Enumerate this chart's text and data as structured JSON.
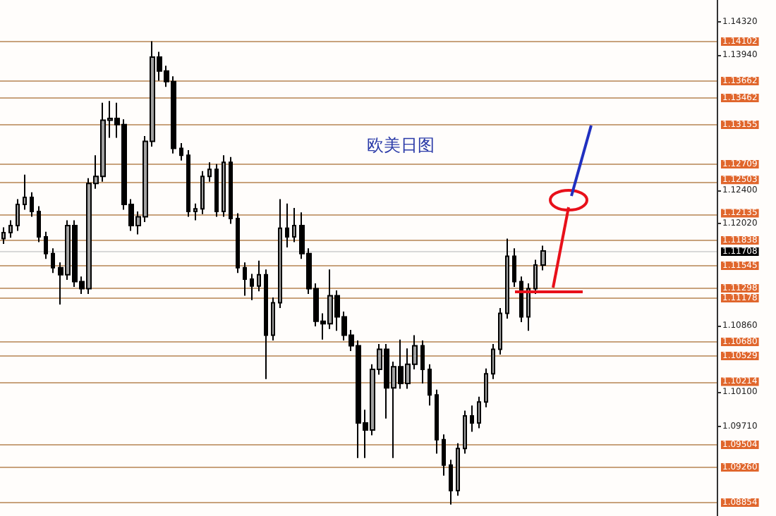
{
  "chart_data": {
    "type": "candlestick",
    "title": "欧美日图",
    "categories": [
      null,
      null,
      null,
      null,
      null,
      null,
      null,
      null,
      null,
      null,
      null,
      null,
      null,
      null,
      null,
      null,
      null,
      null,
      null,
      null,
      null,
      null,
      null,
      null,
      null,
      null,
      null,
      null,
      null,
      null,
      null,
      null,
      null,
      null,
      null,
      null,
      null,
      null,
      null,
      null,
      null,
      null,
      null,
      null,
      null,
      null,
      null,
      null,
      null,
      null,
      null,
      null,
      null,
      null,
      null,
      null,
      null,
      null,
      null,
      null,
      null,
      null,
      null,
      null,
      null,
      null,
      null,
      null,
      null,
      null,
      null,
      null,
      null,
      null,
      null,
      null,
      null,
      null,
      null,
      null,
      null,
      null,
      null,
      null,
      null,
      null,
      null,
      null,
      null,
      null,
      null,
      null,
      null,
      null,
      null,
      null,
      null,
      null,
      null,
      null,
      null
    ],
    "ohlc": [
      [
        1.1185,
        1.1198,
        1.1179,
        1.1192
      ],
      [
        1.1192,
        1.1206,
        1.1186,
        1.12
      ],
      [
        1.12,
        1.123,
        1.1194,
        1.1224
      ],
      [
        1.1224,
        1.1258,
        1.1218,
        1.1232
      ],
      [
        1.1232,
        1.1238,
        1.121,
        1.1216
      ],
      [
        1.1216,
        1.1222,
        1.1181,
        1.1187
      ],
      [
        1.1187,
        1.1193,
        1.1162,
        1.1168
      ],
      [
        1.1168,
        1.1174,
        1.1146,
        1.1152
      ],
      [
        1.1152,
        1.1158,
        1.111,
        1.1144
      ],
      [
        1.1144,
        1.1206,
        1.1138,
        1.12
      ],
      [
        1.12,
        1.1206,
        1.113,
        1.1136
      ],
      [
        1.1136,
        1.1142,
        1.1122,
        1.1128
      ],
      [
        1.1128,
        1.1254,
        1.1122,
        1.1248
      ],
      [
        1.1248,
        1.128,
        1.1242,
        1.1256
      ],
      [
        1.1256,
        1.134,
        1.125,
        1.132
      ],
      [
        1.132,
        1.1342,
        1.13,
        1.1322
      ],
      [
        1.1322,
        1.134,
        1.13,
        1.1315
      ],
      [
        1.1315,
        1.1321,
        1.1218,
        1.1224
      ],
      [
        1.1224,
        1.123,
        1.1194,
        1.12
      ],
      [
        1.12,
        1.1216,
        1.119,
        1.121
      ],
      [
        1.121,
        1.1302,
        1.1204,
        1.1296
      ],
      [
        1.1296,
        1.141,
        1.129,
        1.1392
      ],
      [
        1.1392,
        1.1398,
        1.1365,
        1.1376
      ],
      [
        1.1376,
        1.1382,
        1.1358,
        1.1364
      ],
      [
        1.1364,
        1.137,
        1.1282,
        1.1288
      ],
      [
        1.1288,
        1.1294,
        1.1274,
        1.128
      ],
      [
        1.128,
        1.1286,
        1.121,
        1.1216
      ],
      [
        1.1216,
        1.1225,
        1.1206,
        1.1219
      ],
      [
        1.1219,
        1.1262,
        1.1213,
        1.1256
      ],
      [
        1.1256,
        1.1272,
        1.125,
        1.1264
      ],
      [
        1.1264,
        1.127,
        1.121,
        1.1216
      ],
      [
        1.1216,
        1.128,
        1.121,
        1.1272
      ],
      [
        1.1272,
        1.1278,
        1.1202,
        1.1208
      ],
      [
        1.1208,
        1.1214,
        1.1146,
        1.1152
      ],
      [
        1.1152,
        1.1158,
        1.112,
        1.1139
      ],
      [
        1.1139,
        1.1145,
        1.1115,
        1.1131
      ],
      [
        1.1131,
        1.116,
        1.1125,
        1.1144
      ],
      [
        1.1144,
        1.115,
        1.1025,
        1.1075
      ],
      [
        1.1075,
        1.1118,
        1.1069,
        1.1112
      ],
      [
        1.1112,
        1.123,
        1.1106,
        1.1197
      ],
      [
        1.1197,
        1.1225,
        1.1175,
        1.1187
      ],
      [
        1.1187,
        1.122,
        1.1181,
        1.12
      ],
      [
        1.12,
        1.1215,
        1.1162,
        1.1168
      ],
      [
        1.1168,
        1.1174,
        1.1122,
        1.1128
      ],
      [
        1.1128,
        1.1134,
        1.1085,
        1.1091
      ],
      [
        1.1091,
        1.11,
        1.107,
        1.1088
      ],
      [
        1.1088,
        1.115,
        1.1082,
        1.112
      ],
      [
        1.112,
        1.1126,
        1.108,
        1.1096
      ],
      [
        1.1096,
        1.1102,
        1.1069,
        1.1075
      ],
      [
        1.1075,
        1.1081,
        1.1057,
        1.1063
      ],
      [
        1.1063,
        1.1069,
        1.0935,
        1.0975
      ],
      [
        1.0975,
        1.099,
        1.0935,
        1.0967
      ],
      [
        1.0967,
        1.1042,
        1.0961,
        1.1036
      ],
      [
        1.1036,
        1.1065,
        1.103,
        1.1059
      ],
      [
        1.1059,
        1.1065,
        1.098,
        1.1015
      ],
      [
        1.1015,
        1.1045,
        1.0935,
        1.1039
      ],
      [
        1.1039,
        1.107,
        1.1014,
        1.102
      ],
      [
        1.102,
        1.106,
        1.1014,
        1.1042
      ],
      [
        1.1042,
        1.1075,
        1.1036,
        1.1063
      ],
      [
        1.1063,
        1.1069,
        1.102,
        1.1036
      ],
      [
        1.1036,
        1.1042,
        1.0995,
        1.1007
      ],
      [
        1.1007,
        1.1013,
        1.094,
        1.0956
      ],
      [
        1.0956,
        1.0962,
        1.0915,
        1.0927
      ],
      [
        1.0927,
        1.0933,
        1.0882,
        1.0898
      ],
      [
        1.0898,
        1.0952,
        1.0892,
        1.0946
      ],
      [
        1.0946,
        1.0989,
        1.094,
        1.0983
      ],
      [
        1.0983,
        1.0995,
        1.0965,
        1.0975
      ],
      [
        1.0975,
        1.1005,
        1.0969,
        1.0999
      ],
      [
        1.0999,
        1.1037,
        1.0993,
        1.1031
      ],
      [
        1.1031,
        1.1065,
        1.1025,
        1.1059
      ],
      [
        1.1059,
        1.1106,
        1.1053,
        1.11
      ],
      [
        1.11,
        1.1185,
        1.1094,
        1.1165
      ],
      [
        1.1165,
        1.1174,
        1.113,
        1.1136
      ],
      [
        1.1136,
        1.1142,
        1.109,
        1.1096
      ],
      [
        1.1096,
        1.1134,
        1.108,
        1.1128
      ],
      [
        1.1128,
        1.1161,
        1.1122,
        1.1155
      ],
      [
        1.1155,
        1.1177,
        1.1149,
        1.1171
      ],
      null,
      null,
      null,
      null,
      null,
      null,
      null,
      null,
      null,
      null,
      null,
      null,
      null,
      null,
      null,
      null,
      null,
      null,
      null,
      null,
      null,
      null,
      null,
      null
    ],
    "colors": [
      "#a0a0a0",
      "#a0a0a0",
      "#a0a0a0",
      "#a0a0a0",
      "#000000",
      "#000000",
      "#000000",
      "#000000",
      "#000000",
      "#a0a0a0",
      "#000000",
      "#000000",
      "#a0a0a0",
      "#a0a0a0",
      "#a0a0a0",
      "#a0a0a0",
      "#000000",
      "#000000",
      "#000000",
      "#a0a0a0",
      "#a0a0a0",
      "#a0a0a0",
      "#000000",
      "#000000",
      "#000000",
      "#000000",
      "#000000",
      "#a0a0a0",
      "#a0a0a0",
      "#a0a0a0",
      "#000000",
      "#a0a0a0",
      "#000000",
      "#000000",
      "#000000",
      "#000000",
      "#a0a0a0",
      "#000000",
      "#a0a0a0",
      "#a0a0a0",
      "#000000",
      "#a0a0a0",
      "#000000",
      "#000000",
      "#000000",
      "#000000",
      "#a0a0a0",
      "#000000",
      "#000000",
      "#000000",
      "#000000",
      "#000000",
      "#a0a0a0",
      "#a0a0a0",
      "#000000",
      "#a0a0a0",
      "#000000",
      "#a0a0a0",
      "#a0a0a0",
      "#000000",
      "#000000",
      "#000000",
      "#000000",
      "#000000",
      "#a0a0a0",
      "#a0a0a0",
      "#000000",
      "#a0a0a0",
      "#a0a0a0",
      "#a0a0a0",
      "#a0a0a0",
      "#a0a0a0",
      "#000000",
      "#000000",
      "#a0a0a0",
      "#a0a0a0",
      "#a0a0a0",
      null,
      null,
      null,
      null,
      null,
      null,
      null,
      null,
      null,
      null,
      null,
      null,
      null,
      null,
      null,
      null,
      null,
      null,
      null,
      null,
      null,
      null,
      null,
      null
    ],
    "ylim": [
      1.0869,
      1.1457
    ],
    "yticks": [
      {
        "value": 1.1432,
        "label": "1.14320"
      },
      {
        "value": 1.1394,
        "label": "1.13940"
      },
      {
        "value": 1.124,
        "label": "1.12400"
      },
      {
        "value": 1.1202,
        "label": "1.12020"
      },
      {
        "value": 1.1086,
        "label": "1.10860"
      },
      {
        "value": 1.101,
        "label": "1.10100"
      },
      {
        "value": 1.0971,
        "label": "1.09710"
      }
    ],
    "ref_lines": [
      {
        "axis": "y",
        "value": 1.14102,
        "label": "1.14102",
        "color": "#c8a27c"
      },
      {
        "axis": "y",
        "value": 1.13662,
        "label": "1.13662",
        "color": "#c8a27c"
      },
      {
        "axis": "y",
        "value": 1.13462,
        "label": "1.13462",
        "color": "#c8a27c"
      },
      {
        "axis": "y",
        "value": 1.13155,
        "label": "1.13155",
        "color": "#c8a27c"
      },
      {
        "axis": "y",
        "value": 1.12709,
        "label": "1.12709",
        "color": "#c8a27c"
      },
      {
        "axis": "y",
        "value": 1.12503,
        "label": "1.12503",
        "color": "#c8a27c"
      },
      {
        "axis": "y",
        "value": 1.12135,
        "label": "1.12135",
        "color": "#c8a27c"
      },
      {
        "axis": "y",
        "value": 1.11838,
        "label": "1.11838",
        "color": "#c8a27c"
      },
      {
        "axis": "y",
        "value": 1.11708,
        "label": "1.11708",
        "color": "#d8d8d8"
      },
      {
        "axis": "y",
        "value": 1.11545,
        "label": "1.11545",
        "color": "#c8a27c"
      },
      {
        "axis": "y",
        "value": 1.11298,
        "label": "1.11298",
        "color": "#c8a27c"
      },
      {
        "axis": "y",
        "value": 1.11178,
        "label": "1.11178",
        "color": "#c8a27c"
      },
      {
        "axis": "y",
        "value": 1.1068,
        "label": "1.10680",
        "color": "#c8a27c"
      },
      {
        "axis": "y",
        "value": 1.10529,
        "label": "1.10529",
        "color": "#c8a27c"
      },
      {
        "axis": "y",
        "value": 1.10214,
        "label": "1.10214",
        "color": "#c8a27c"
      },
      {
        "axis": "y",
        "value": 1.09504,
        "label": "1.09504",
        "color": "#c8a27c"
      },
      {
        "axis": "y",
        "value": 1.0926,
        "label": "1.09260",
        "color": "#c8a27c"
      },
      {
        "axis": "y",
        "value": 1.08854,
        "label": "1.08854",
        "color": "#c8a27c"
      }
    ]
  }
}
